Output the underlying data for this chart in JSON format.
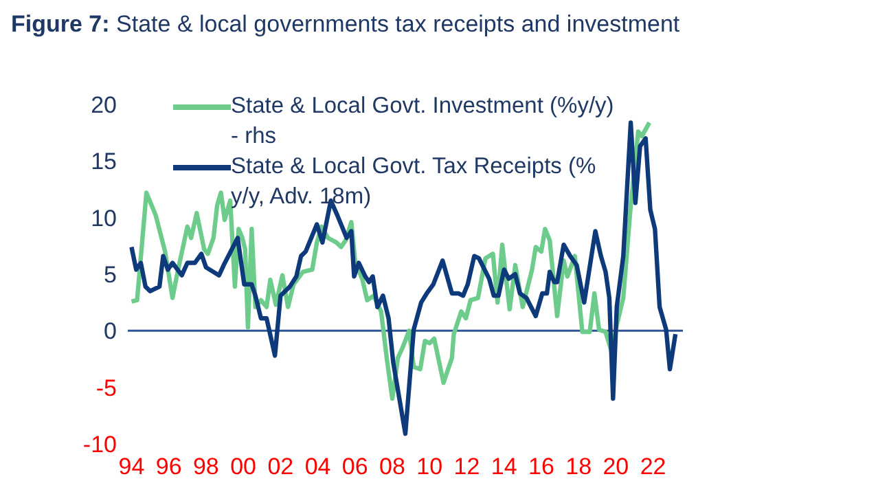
{
  "chart_data": {
    "type": "line",
    "title": "Figure 7: State & local governments tax receipts and investment",
    "legend": "top left",
    "marker": "none",
    "line_style": "solid",
    "grid": false,
    "xlim": [
      1993.8,
      2023.6
    ],
    "xticks": [
      {
        "value": 1994,
        "label": "94"
      },
      {
        "value": 1996,
        "label": "96"
      },
      {
        "value": 1998,
        "label": "98"
      },
      {
        "value": 2000,
        "label": "00"
      },
      {
        "value": 2002,
        "label": "02"
      },
      {
        "value": 2004,
        "label": "04"
      },
      {
        "value": 2006,
        "label": "06"
      },
      {
        "value": 2008,
        "label": "08"
      },
      {
        "value": 2010,
        "label": "10"
      },
      {
        "value": 2012,
        "label": "12"
      },
      {
        "value": 2014,
        "label": "14"
      },
      {
        "value": 2016,
        "label": "16"
      },
      {
        "value": 2018,
        "label": "18"
      },
      {
        "value": 2020,
        "label": "20"
      },
      {
        "value": 2022,
        "label": "22"
      }
    ],
    "ylim": [
      -10,
      20
    ],
    "yticks": [
      -10,
      -5,
      0,
      5,
      10,
      15,
      20
    ],
    "ref_lines": [
      {
        "axis": "y",
        "value": 0,
        "label": null,
        "color": "#2f5597"
      }
    ],
    "series": [
      {
        "name": "State & Local Govt. Investment (%y/y) - rhs",
        "color": "#6dcc8c",
        "x": [
          1994.0,
          1994.3,
          1994.8,
          1995.3,
          1995.8,
          1996.2,
          1996.5,
          1997.0,
          1997.2,
          1997.5,
          1997.9,
          1998.1,
          1998.4,
          1998.6,
          1998.8,
          1999.0,
          1999.3,
          1999.55,
          1999.75,
          1999.95,
          2000.1,
          2000.25,
          2000.45,
          2000.65,
          2000.95,
          2001.25,
          2001.45,
          2001.75,
          2002.1,
          2002.4,
          2002.7,
          2003.2,
          2003.7,
          2003.95,
          2004.2,
          2004.55,
          2005.0,
          2005.25,
          2005.5,
          2005.8,
          2006.0,
          2006.4,
          2006.65,
          2007.0,
          2007.4,
          2007.7,
          2008.0,
          2008.3,
          2008.55,
          2008.9,
          2009.15,
          2009.5,
          2009.75,
          2010.0,
          2010.25,
          2010.75,
          2011.2,
          2011.3,
          2011.7,
          2011.95,
          2012.2,
          2012.6,
          2013.0,
          2013.4,
          2013.65,
          2013.9,
          2014.3,
          2014.6,
          2015.0,
          2015.5,
          2015.7,
          2016.0,
          2016.2,
          2016.45,
          2016.85,
          2017.2,
          2017.4,
          2017.8,
          2018.2,
          2018.6,
          2018.85,
          2019.1,
          2019.45,
          2019.8,
          2020.05,
          2020.4,
          2020.8,
          2021.2,
          2021.4,
          2021.8
        ],
        "values": [
          2.6,
          2.7,
          12.2,
          10.2,
          7.0,
          2.9,
          5.4,
          9.2,
          8.2,
          10.4,
          7.2,
          6.8,
          8.2,
          11.1,
          12.2,
          9.8,
          11.5,
          3.9,
          9.0,
          8.2,
          7.2,
          0.3,
          9.0,
          2.1,
          2.7,
          2.1,
          4.5,
          2.3,
          4.9,
          2.1,
          4.1,
          5.2,
          5.4,
          7.8,
          9.2,
          8.2,
          7.8,
          7.4,
          8.0,
          9.6,
          6.2,
          4.5,
          2.7,
          3.1,
          1.7,
          -2.4,
          -6.0,
          -2.4,
          -1.5,
          0.0,
          -3.2,
          -3.4,
          -0.9,
          -1.1,
          -0.7,
          -4.6,
          -2.4,
          -0.3,
          1.7,
          1.1,
          2.7,
          2.9,
          6.4,
          6.8,
          2.5,
          7.6,
          1.9,
          5.8,
          2.1,
          5.4,
          7.4,
          7.0,
          9.0,
          8.0,
          1.3,
          6.2,
          4.8,
          6.6,
          -0.1,
          -0.1,
          3.3,
          0.1,
          -0.1,
          -2.0,
          0.5,
          2.9,
          11.1,
          17.6,
          17.2,
          18.4
        ]
      },
      {
        "name": "State & Local Govt. Tax Receipts (% y/y, Adv. 18m)",
        "color": "#0e3a7c",
        "x": [
          1994.0,
          1994.25,
          1994.5,
          1994.75,
          1995.0,
          1995.5,
          1995.7,
          1995.95,
          1996.2,
          1996.7,
          1997.0,
          1997.4,
          1997.75,
          1998.0,
          1998.7,
          1998.95,
          1999.7,
          2000.05,
          2000.45,
          2000.65,
          2000.95,
          2001.25,
          2001.7,
          2002.0,
          2002.5,
          2002.85,
          2003.1,
          2003.35,
          2003.95,
          2004.25,
          2004.7,
          2005.05,
          2005.55,
          2005.8,
          2005.95,
          2006.2,
          2006.55,
          2006.75,
          2006.95,
          2007.2,
          2007.5,
          2007.8,
          2008.05,
          2008.7,
          2009.15,
          2009.55,
          2009.85,
          2010.2,
          2010.7,
          2011.2,
          2011.55,
          2011.8,
          2012.05,
          2012.4,
          2012.65,
          2013.2,
          2013.45,
          2013.7,
          2014.0,
          2014.25,
          2014.6,
          2014.85,
          2015.2,
          2015.7,
          2016.05,
          2016.3,
          2016.45,
          2016.7,
          2016.85,
          2017.2,
          2017.55,
          2017.9,
          2018.3,
          2018.5,
          2018.9,
          2019.2,
          2019.45,
          2019.65,
          2019.85,
          2020.05,
          2020.4,
          2020.8,
          2021.05,
          2021.3,
          2021.6,
          2021.85,
          2022.1,
          2022.35,
          2022.7,
          2022.9,
          2023.2
        ],
        "values": [
          7.4,
          5.4,
          6.0,
          3.9,
          3.5,
          3.9,
          6.6,
          5.4,
          6.0,
          4.9,
          6.0,
          6.0,
          6.8,
          5.6,
          4.9,
          5.8,
          8.2,
          4.1,
          4.1,
          3.1,
          1.1,
          1.1,
          -2.2,
          3.1,
          3.9,
          4.8,
          6.6,
          7.0,
          9.4,
          7.8,
          11.5,
          10.2,
          8.2,
          8.8,
          4.8,
          6.0,
          4.8,
          4.3,
          4.8,
          2.1,
          3.1,
          1.1,
          -2.8,
          -9.1,
          0.1,
          2.5,
          3.3,
          4.1,
          6.2,
          3.3,
          3.3,
          3.1,
          4.1,
          6.6,
          6.4,
          4.6,
          3.1,
          3.1,
          5.4,
          4.6,
          5.0,
          3.3,
          2.9,
          1.3,
          3.3,
          3.3,
          5.2,
          4.3,
          4.3,
          7.6,
          6.6,
          5.8,
          2.5,
          4.6,
          8.8,
          6.6,
          5.2,
          2.9,
          -6.0,
          2.1,
          6.6,
          18.4,
          11.3,
          16.3,
          17.0,
          10.7,
          9.0,
          2.1,
          0.1,
          -3.4,
          -0.3
        ]
      }
    ]
  }
}
